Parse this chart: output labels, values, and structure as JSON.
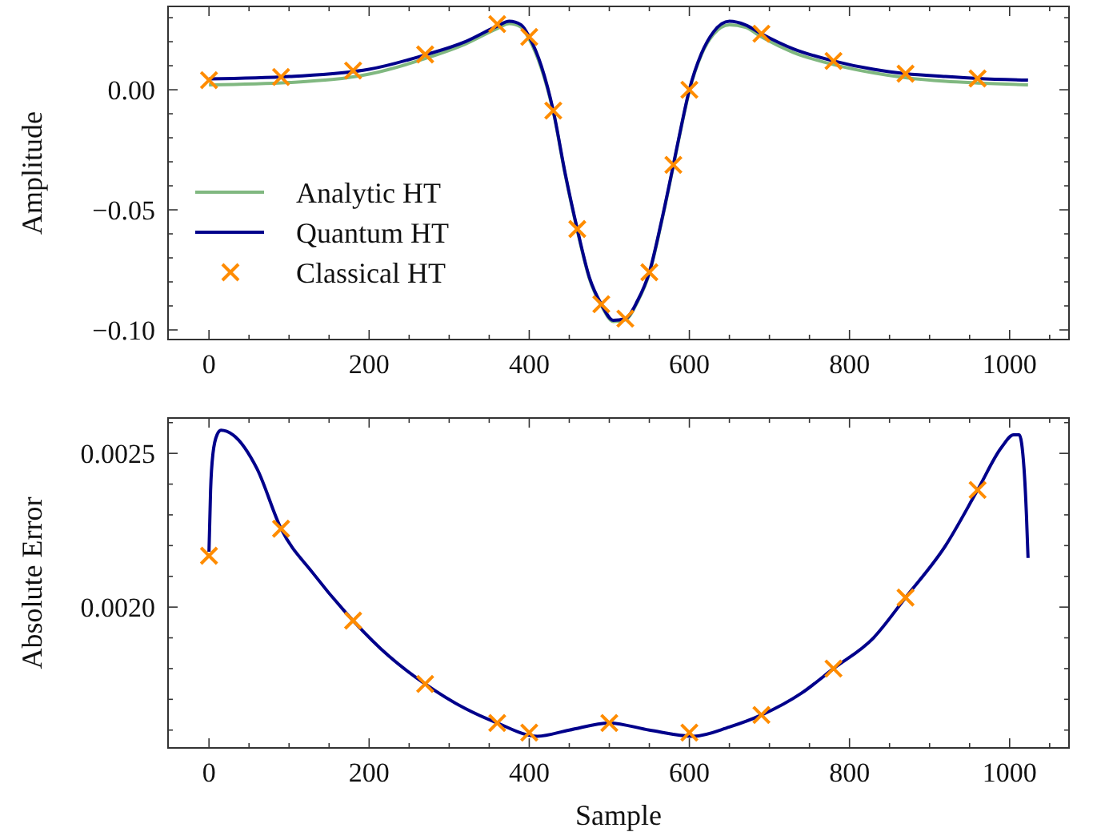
{
  "chart_data": [
    {
      "type": "line",
      "ylabel": "Amplitude",
      "xlim": [
        -51.15,
        1074.15
      ],
      "ylim": [
        -0.104,
        0.0347
      ],
      "xticks": [
        0,
        {
          "value": 50,
          "label": null
        },
        200,
        {
          "value": 100,
          "label": null
        },
        {
          "value": 150,
          "label": null
        },
        {
          "value": 250,
          "label": null
        },
        {
          "value": 300,
          "label": null
        },
        {
          "value": 350,
          "label": null
        },
        400,
        {
          "value": 450,
          "label": null
        },
        {
          "value": 500,
          "label": null
        },
        {
          "value": 550,
          "label": null
        },
        600,
        {
          "value": 650,
          "label": null
        },
        {
          "value": 700,
          "label": null
        },
        {
          "value": 750,
          "label": null
        },
        800,
        {
          "value": 850,
          "label": null
        },
        {
          "value": 900,
          "label": null
        },
        {
          "value": 950,
          "label": null
        },
        1000,
        {
          "value": 1050,
          "label": null
        }
      ],
      "yticks": [
        {
          "value": -0.1,
          "label": "−0.10"
        },
        {
          "value": -0.05,
          "label": "−0.05"
        },
        {
          "value": 0,
          "label": "0.00"
        },
        {
          "value": -0.09,
          "label": null
        },
        {
          "value": -0.08,
          "label": null
        },
        {
          "value": -0.07,
          "label": null
        },
        {
          "value": -0.06,
          "label": null
        },
        {
          "value": -0.04,
          "label": null
        },
        {
          "value": -0.03,
          "label": null
        },
        {
          "value": -0.02,
          "label": null
        },
        {
          "value": -0.01,
          "label": null
        },
        {
          "value": 0.01,
          "label": null
        },
        {
          "value": 0.02,
          "label": null
        },
        {
          "value": 0.03,
          "label": null
        }
      ],
      "legend": "left",
      "series": [
        {
          "name": "Analytic HT",
          "color": "#80b880",
          "x": [
            0,
            100,
            200,
            270,
            320,
            360,
            375,
            390,
            400,
            415,
            430,
            445,
            460,
            475,
            490,
            505,
            520,
            535,
            550,
            565,
            580,
            590,
            600,
            615,
            630,
            650,
            670,
            690,
            730,
            780,
            830,
            870,
            920,
            960,
            1023
          ],
          "values": [
            0.002,
            0.003,
            0.0065,
            0.013,
            0.019,
            0.0255,
            0.0275,
            0.026,
            0.021,
            0.009,
            -0.0092,
            -0.0355,
            -0.0585,
            -0.0785,
            -0.0898,
            -0.0965,
            -0.0958,
            -0.0885,
            -0.0765,
            -0.0555,
            -0.0318,
            -0.0155,
            -0.0005,
            0.0145,
            0.023,
            0.027,
            0.026,
            0.022,
            0.0155,
            0.0105,
            0.007,
            0.005,
            0.0035,
            0.0028,
            0.002
          ]
        },
        {
          "name": "Quantum HT",
          "color": "#00008b",
          "x": [
            0,
            100,
            200,
            270,
            320,
            360,
            375,
            390,
            400,
            415,
            430,
            445,
            460,
            475,
            490,
            505,
            520,
            535,
            550,
            565,
            580,
            590,
            600,
            615,
            630,
            650,
            670,
            690,
            730,
            780,
            830,
            870,
            920,
            960,
            1023
          ],
          "values": [
            0.0045,
            0.0055,
            0.0085,
            0.0145,
            0.02,
            0.0265,
            0.0285,
            0.027,
            0.022,
            0.01,
            -0.0087,
            -0.035,
            -0.058,
            -0.078,
            -0.0893,
            -0.096,
            -0.0953,
            -0.088,
            -0.076,
            -0.055,
            -0.0313,
            -0.015,
            0.0,
            0.015,
            0.024,
            0.0285,
            0.027,
            0.0233,
            0.017,
            0.012,
            0.0085,
            0.0067,
            0.0055,
            0.0047,
            0.004
          ]
        },
        {
          "name": "Classical HT",
          "type": "scatter",
          "marker": "cross",
          "color": "#ff8c00",
          "x": [
            0,
            90,
            180,
            270,
            360,
            400,
            430,
            460,
            490,
            520,
            550,
            580,
            600,
            690,
            780,
            870,
            960
          ],
          "values": [
            0.004,
            0.0053,
            0.008,
            0.0147,
            0.0273,
            0.022,
            -0.0087,
            -0.058,
            -0.0893,
            -0.0953,
            -0.076,
            -0.0313,
            0.0,
            0.0233,
            0.012,
            0.0067,
            0.0047
          ]
        }
      ]
    },
    {
      "type": "line",
      "xlabel": "Sample",
      "ylabel": "Absolute Error",
      "xlim": [
        -51.15,
        1074.15
      ],
      "ylim": [
        0.001542,
        0.002615
      ],
      "xticks": [
        0,
        {
          "value": 50,
          "label": null
        },
        200,
        {
          "value": 100,
          "label": null
        },
        {
          "value": 150,
          "label": null
        },
        {
          "value": 250,
          "label": null
        },
        {
          "value": 300,
          "label": null
        },
        {
          "value": 350,
          "label": null
        },
        400,
        {
          "value": 450,
          "label": null
        },
        {
          "value": 500,
          "label": null
        },
        {
          "value": 550,
          "label": null
        },
        600,
        {
          "value": 650,
          "label": null
        },
        {
          "value": 700,
          "label": null
        },
        {
          "value": 750,
          "label": null
        },
        800,
        {
          "value": 850,
          "label": null
        },
        {
          "value": 900,
          "label": null
        },
        {
          "value": 950,
          "label": null
        },
        1000,
        {
          "value": 1050,
          "label": null
        }
      ],
      "yticks": [
        {
          "value": 0.002,
          "label": "0.0020"
        },
        {
          "value": 0.0025,
          "label": "0.0025"
        },
        {
          "value": 0.0016,
          "label": null
        },
        {
          "value": 0.0017,
          "label": null
        },
        {
          "value": 0.0018,
          "label": null
        },
        {
          "value": 0.0019,
          "label": null
        },
        {
          "value": 0.0021,
          "label": null
        },
        {
          "value": 0.0022,
          "label": null
        },
        {
          "value": 0.0023,
          "label": null
        },
        {
          "value": 0.0024,
          "label": null
        },
        {
          "value": 0.0026,
          "label": null
        }
      ],
      "series": [
        {
          "color": "#00008b",
          "x": [
            0,
            2,
            5,
            10,
            15,
            30,
            60,
            90,
            130,
            180,
            225,
            270,
            320,
            360,
            410,
            450,
            500,
            550,
            605,
            650,
            690,
            740,
            780,
            830,
            870,
            920,
            960,
            990,
            1005,
            1012,
            1018,
            1021,
            1023
          ],
          "values": [
            0.00218,
            0.00238,
            0.0025,
            0.00256,
            0.002575,
            0.00256,
            0.00245,
            0.002255,
            0.00211,
            0.001956,
            0.00184,
            0.00175,
            0.00167,
            0.001623,
            0.00158,
            0.0016,
            0.001623,
            0.0016,
            0.00158,
            0.00161,
            0.001649,
            0.00172,
            0.0018,
            0.0019,
            0.002031,
            0.0022,
            0.002381,
            0.00252,
            0.00256,
            0.00256,
            0.00245,
            0.0023,
            0.00216
          ]
        },
        {
          "type": "scatter",
          "marker": "cross",
          "color": "#ff8c00",
          "x": [
            0,
            90,
            180,
            270,
            360,
            400,
            500,
            600,
            690,
            780,
            870,
            960
          ],
          "values": [
            0.002167,
            0.002255,
            0.001956,
            0.00175,
            0.001623,
            0.001592,
            0.001623,
            0.001592,
            0.001649,
            0.0018,
            0.002031,
            0.002381
          ]
        }
      ]
    }
  ]
}
